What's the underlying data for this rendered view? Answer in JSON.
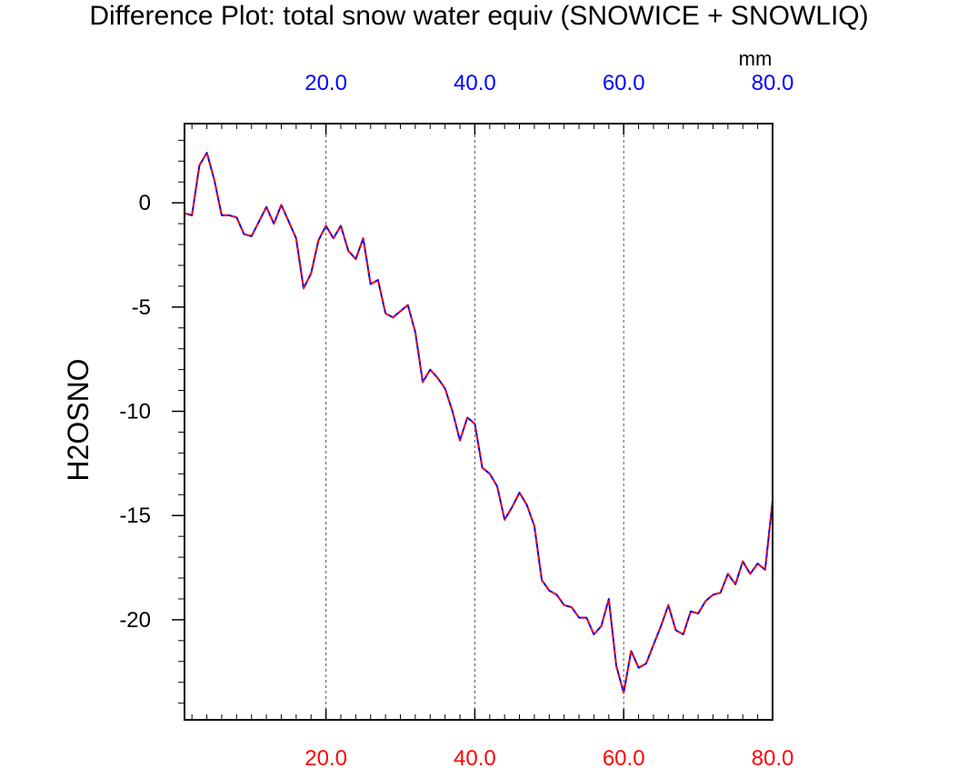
{
  "chart_data": {
    "type": "line",
    "title": "Difference Plot: total snow water equiv (SNOWICE + SNOWLIQ)",
    "units": "mm",
    "ylabel": "H2OSNO",
    "xlabel": "",
    "xlim": [
      1,
      80
    ],
    "ylim": [
      -24.8,
      3.8
    ],
    "grid": "vertical dashed lines at major x ticks",
    "top_axis": {
      "ticks": [
        20,
        40,
        60,
        80
      ],
      "tick_labels": [
        "20.0",
        "40.0",
        "60.0",
        "80.0"
      ],
      "color": "#0000ff"
    },
    "bottom_axis": {
      "ticks": [
        20,
        40,
        60,
        80
      ],
      "tick_labels": [
        "20.0",
        "40.0",
        "60.0",
        "80.0"
      ],
      "color": "#ff0000"
    },
    "left_axis": {
      "ticks": [
        0,
        -5,
        -10,
        -15,
        -20
      ],
      "tick_labels": [
        "0",
        "-5",
        "-10",
        "-15",
        "-20"
      ],
      "color": "#000000"
    },
    "series": [
      {
        "line_color": "#0000ff",
        "style": "solid",
        "x": [
          1,
          2,
          3,
          4,
          5,
          6,
          7,
          8,
          9,
          10,
          11,
          12,
          13,
          14,
          15,
          16,
          17,
          18,
          19,
          20,
          21,
          22,
          23,
          24,
          25,
          26,
          27,
          28,
          29,
          30,
          31,
          32,
          33,
          34,
          35,
          36,
          37,
          38,
          39,
          40,
          41,
          42,
          43,
          44,
          45,
          46,
          47,
          48,
          49,
          50,
          51,
          52,
          53,
          54,
          55,
          56,
          57,
          58,
          59,
          60,
          61,
          62,
          63,
          64,
          65,
          66,
          67,
          68,
          69,
          70,
          71,
          72,
          73,
          74,
          75,
          76,
          77,
          78,
          79,
          80
        ],
        "values": [
          -0.5,
          -0.6,
          1.8,
          2.4,
          1.1,
          -0.6,
          -0.6,
          -0.7,
          -1.5,
          -1.6,
          -0.9,
          -0.2,
          -1.0,
          -0.1,
          -0.9,
          -1.7,
          -4.1,
          -3.4,
          -1.8,
          -1.1,
          -1.7,
          -1.1,
          -2.3,
          -2.7,
          -1.7,
          -3.9,
          -3.7,
          -5.3,
          -5.5,
          -5.2,
          -4.9,
          -6.2,
          -8.6,
          -8.0,
          -8.4,
          -8.9,
          -10.0,
          -11.4,
          -10.3,
          -10.6,
          -12.7,
          -13.0,
          -13.6,
          -15.2,
          -14.6,
          -13.9,
          -14.5,
          -15.5,
          -18.1,
          -18.6,
          -18.8,
          -19.3,
          -19.4,
          -19.9,
          -19.9,
          -20.7,
          -20.3,
          -19.0,
          -22.2,
          -23.5,
          -21.5,
          -22.3,
          -22.1,
          -21.2,
          -20.3,
          -19.3,
          -20.5,
          -20.7,
          -19.6,
          -19.7,
          -19.1,
          -18.8,
          -18.7,
          -17.8,
          -18.3,
          -17.2,
          -17.8,
          -17.3,
          -17.6,
          -14.3
        ]
      },
      {
        "line_color": "#ff0000",
        "style": "dashed",
        "x": [
          1,
          2,
          3,
          4,
          5,
          6,
          7,
          8,
          9,
          10,
          11,
          12,
          13,
          14,
          15,
          16,
          17,
          18,
          19,
          20,
          21,
          22,
          23,
          24,
          25,
          26,
          27,
          28,
          29,
          30,
          31,
          32,
          33,
          34,
          35,
          36,
          37,
          38,
          39,
          40,
          41,
          42,
          43,
          44,
          45,
          46,
          47,
          48,
          49,
          50,
          51,
          52,
          53,
          54,
          55,
          56,
          57,
          58,
          59,
          60,
          61,
          62,
          63,
          64,
          65,
          66,
          67,
          68,
          69,
          70,
          71,
          72,
          73,
          74,
          75,
          76,
          77,
          78,
          79,
          80
        ],
        "values": [
          -0.5,
          -0.6,
          1.8,
          2.4,
          1.1,
          -0.6,
          -0.6,
          -0.7,
          -1.5,
          -1.6,
          -0.9,
          -0.2,
          -1.0,
          -0.1,
          -0.9,
          -1.7,
          -4.1,
          -3.4,
          -1.8,
          -1.1,
          -1.7,
          -1.1,
          -2.3,
          -2.7,
          -1.7,
          -3.9,
          -3.7,
          -5.3,
          -5.5,
          -5.2,
          -4.9,
          -6.2,
          -8.6,
          -8.0,
          -8.4,
          -8.9,
          -10.0,
          -11.4,
          -10.3,
          -10.6,
          -12.7,
          -13.0,
          -13.6,
          -15.2,
          -14.6,
          -13.9,
          -14.5,
          -15.5,
          -18.1,
          -18.6,
          -18.8,
          -19.3,
          -19.4,
          -19.9,
          -19.9,
          -20.7,
          -20.3,
          -19.0,
          -22.2,
          -23.5,
          -21.5,
          -22.3,
          -22.1,
          -21.2,
          -20.3,
          -19.3,
          -20.5,
          -20.7,
          -19.6,
          -19.7,
          -19.1,
          -18.8,
          -18.7,
          -17.8,
          -18.3,
          -17.2,
          -17.8,
          -17.3,
          -17.6,
          -14.3
        ]
      }
    ]
  }
}
